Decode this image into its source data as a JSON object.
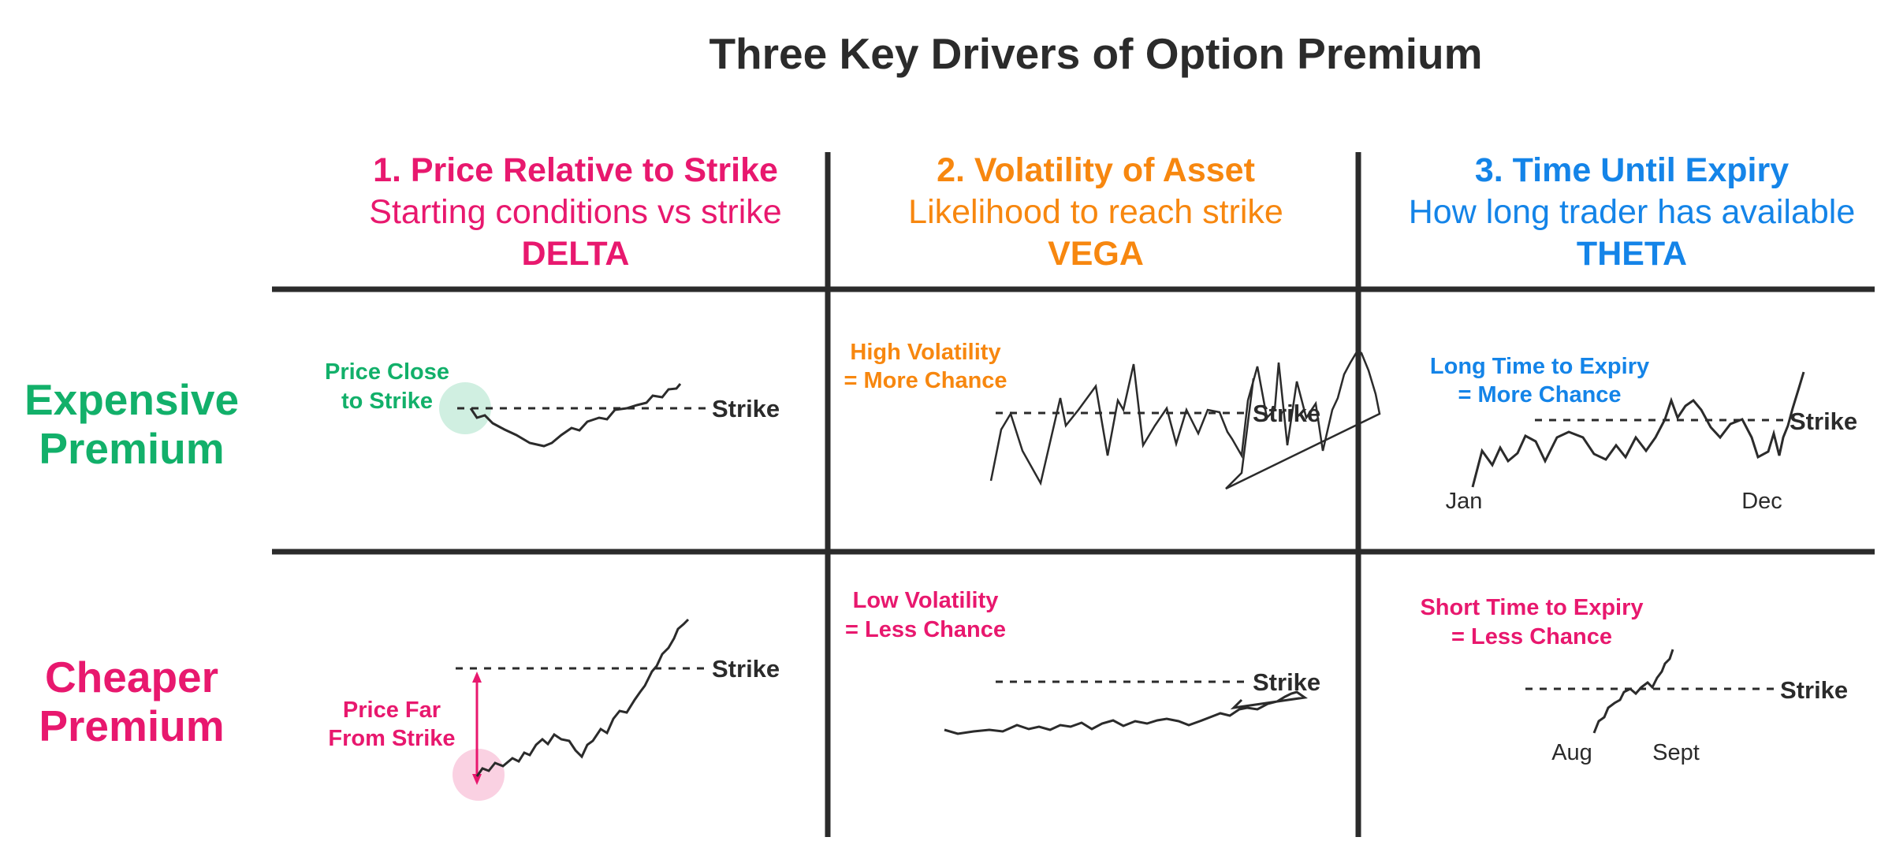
{
  "title": "Three Key Drivers of Option Premium",
  "columns": [
    {
      "title": "1. Price Relative to Strike",
      "subtitle": "Starting conditions vs strike",
      "greek": "DELTA",
      "color": "#e8186e"
    },
    {
      "title": "2. Volatility of Asset",
      "subtitle": "Likelihood to reach strike",
      "greek": "VEGA",
      "color": "#f7870f"
    },
    {
      "title": "3. Time Until Expiry",
      "subtitle": "How long trader has available",
      "greek": "THETA",
      "color": "#1484e8"
    }
  ],
  "rows": [
    {
      "label_line1": "Expensive",
      "label_line2": "Premium",
      "color": "#12b06a"
    },
    {
      "label_line1": "Cheaper",
      "label_line2": "Premium",
      "color": "#e8186e"
    }
  ],
  "cells": {
    "delta_expensive": {
      "note_line1": "Price Close",
      "note_line2": "to Strike",
      "strike": "Strike",
      "color": "#12b06a"
    },
    "vega_expensive": {
      "note_line1": "High Volatility",
      "note_line2": "= More Chance",
      "strike": "Strike",
      "color": "#f7870f"
    },
    "theta_expensive": {
      "note_line1": "Long Time to Expiry",
      "note_line2": "= More Chance",
      "strike": "Strike",
      "start": "Jan",
      "end": "Dec",
      "color": "#1484e8"
    },
    "delta_cheaper": {
      "note_line1": "Price Far",
      "note_line2": "From Strike",
      "strike": "Strike",
      "color": "#e8186e"
    },
    "vega_cheaper": {
      "note_line1": "Low Volatility",
      "note_line2": "= Less Chance",
      "strike": "Strike",
      "color": "#e8186e"
    },
    "theta_cheaper": {
      "note_line1": "Short Time to Expiry",
      "note_line2": "= Less Chance",
      "strike": "Strike",
      "start": "Aug",
      "end": "Sept",
      "color": "#e8186e"
    }
  }
}
